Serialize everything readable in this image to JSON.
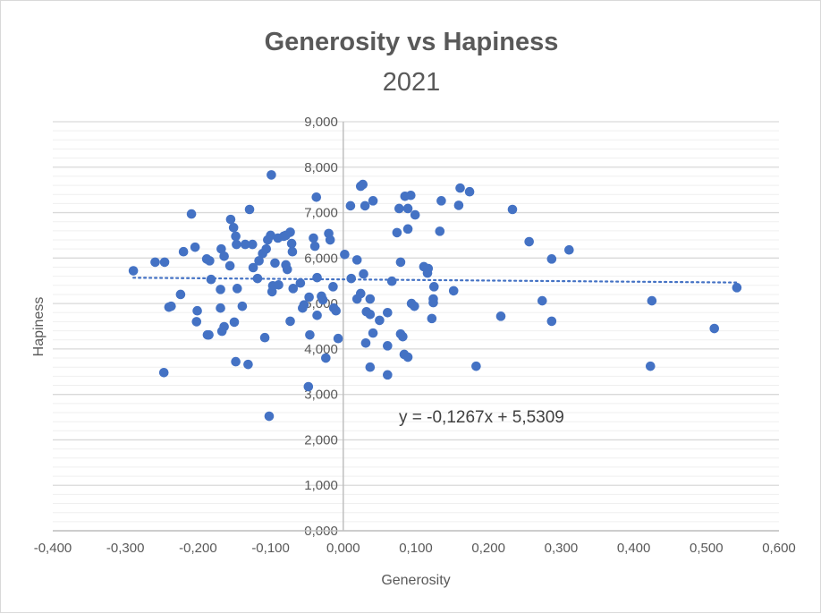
{
  "chart_data": {
    "type": "scatter",
    "title": "Generosity vs Hapiness",
    "subtitle": "2021",
    "xlabel": "Generosity",
    "ylabel": "Hapiness",
    "xlim": [
      -0.4,
      0.6
    ],
    "ylim": [
      0,
      9
    ],
    "x_ticks": [
      "-0,400",
      "-0,300",
      "-0,200",
      "-0,100",
      "0,000",
      "0,100",
      "0,200",
      "0,300",
      "0,400",
      "0,500",
      "0,600"
    ],
    "y_ticks": [
      "0,000",
      "1,000",
      "2,000",
      "3,000",
      "4,000",
      "5,000",
      "6,000",
      "7,000",
      "8,000",
      "9,000"
    ],
    "grid": true,
    "marker_color": "#4472c4",
    "trendline": {
      "type": "linear",
      "slope": -0.1267,
      "intercept": 5.5309,
      "style": "dotted",
      "label": "y = -0,1267x + 5,5309"
    },
    "points": [
      [
        -0.289,
        5.72
      ],
      [
        -0.259,
        5.91
      ],
      [
        -0.246,
        5.91
      ],
      [
        -0.247,
        3.48
      ],
      [
        -0.24,
        4.92
      ],
      [
        -0.237,
        4.94
      ],
      [
        -0.224,
        5.2
      ],
      [
        -0.22,
        6.14
      ],
      [
        -0.209,
        6.97
      ],
      [
        -0.204,
        6.24
      ],
      [
        -0.201,
        4.84
      ],
      [
        -0.202,
        4.6
      ],
      [
        -0.188,
        5.98
      ],
      [
        -0.184,
        5.94
      ],
      [
        -0.187,
        4.31
      ],
      [
        -0.185,
        4.31
      ],
      [
        -0.182,
        5.53
      ],
      [
        -0.169,
        5.31
      ],
      [
        -0.169,
        4.9
      ],
      [
        -0.168,
        6.2
      ],
      [
        -0.164,
        6.04
      ],
      [
        -0.167,
        4.39
      ],
      [
        -0.164,
        4.49
      ],
      [
        -0.156,
        5.83
      ],
      [
        -0.155,
        6.85
      ],
      [
        -0.151,
        6.67
      ],
      [
        -0.148,
        6.48
      ],
      [
        -0.147,
        6.3
      ],
      [
        -0.148,
        3.72
      ],
      [
        -0.146,
        5.33
      ],
      [
        -0.15,
        4.59
      ],
      [
        -0.139,
        4.94
      ],
      [
        -0.135,
        6.3
      ],
      [
        -0.131,
        3.66
      ],
      [
        -0.129,
        7.07
      ],
      [
        -0.125,
        6.3
      ],
      [
        -0.124,
        5.79
      ],
      [
        -0.118,
        5.55
      ],
      [
        -0.116,
        5.94
      ],
      [
        -0.111,
        6.1
      ],
      [
        -0.108,
        4.25
      ],
      [
        -0.106,
        6.2
      ],
      [
        -0.104,
        6.4
      ],
      [
        -0.1,
        6.5
      ],
      [
        -0.099,
        7.83
      ],
      [
        -0.102,
        2.52
      ],
      [
        -0.097,
        5.39
      ],
      [
        -0.098,
        5.26
      ],
      [
        -0.094,
        5.89
      ],
      [
        -0.09,
        6.44
      ],
      [
        -0.082,
        6.48
      ],
      [
        -0.079,
        6.5
      ],
      [
        -0.089,
        5.41
      ],
      [
        -0.079,
        5.85
      ],
      [
        -0.077,
        5.75
      ],
      [
        -0.073,
        6.57
      ],
      [
        -0.073,
        4.61
      ],
      [
        -0.071,
        6.32
      ],
      [
        -0.07,
        6.14
      ],
      [
        -0.069,
        5.33
      ],
      [
        -0.059,
        5.45
      ],
      [
        -0.056,
        4.9
      ],
      [
        -0.054,
        4.97
      ],
      [
        -0.046,
        4.31
      ],
      [
        -0.041,
        6.44
      ],
      [
        -0.039,
        6.26
      ],
      [
        -0.036,
        5.57
      ],
      [
        -0.036,
        4.74
      ],
      [
        -0.037,
        7.34
      ],
      [
        -0.03,
        5.16
      ],
      [
        -0.028,
        5.08
      ],
      [
        -0.024,
        3.8
      ],
      [
        -0.02,
        6.54
      ],
      [
        -0.018,
        6.4
      ],
      [
        -0.014,
        5.37
      ],
      [
        -0.013,
        4.9
      ],
      [
        -0.01,
        4.84
      ],
      [
        -0.007,
        4.23
      ],
      [
        -0.048,
        3.17
      ],
      [
        -0.047,
        5.14
      ],
      [
        0.002,
        6.08
      ],
      [
        0.024,
        7.58
      ],
      [
        0.027,
        7.62
      ],
      [
        0.01,
        7.15
      ],
      [
        0.03,
        7.15
      ],
      [
        0.041,
        7.26
      ],
      [
        0.019,
        5.96
      ],
      [
        0.028,
        5.65
      ],
      [
        0.011,
        5.55
      ],
      [
        0.024,
        5.22
      ],
      [
        0.019,
        5.1
      ],
      [
        0.037,
        5.1
      ],
      [
        0.032,
        4.82
      ],
      [
        0.037,
        4.76
      ],
      [
        0.05,
        4.63
      ],
      [
        0.061,
        4.8
      ],
      [
        0.041,
        4.35
      ],
      [
        0.031,
        4.13
      ],
      [
        0.061,
        4.07
      ],
      [
        0.037,
        3.6
      ],
      [
        0.061,
        3.43
      ],
      [
        0.067,
        5.49
      ],
      [
        0.079,
        5.91
      ],
      [
        0.074,
        6.56
      ],
      [
        0.089,
        6.64
      ],
      [
        0.077,
        7.09
      ],
      [
        0.089,
        7.09
      ],
      [
        0.099,
        6.95
      ],
      [
        0.085,
        7.36
      ],
      [
        0.093,
        7.38
      ],
      [
        0.079,
        4.33
      ],
      [
        0.082,
        4.27
      ],
      [
        0.084,
        3.88
      ],
      [
        0.089,
        3.82
      ],
      [
        0.094,
        5.0
      ],
      [
        0.098,
        4.94
      ],
      [
        0.111,
        5.81
      ],
      [
        0.117,
        5.77
      ],
      [
        0.116,
        5.67
      ],
      [
        0.125,
        5.37
      ],
      [
        0.124,
        5.1
      ],
      [
        0.124,
        5.02
      ],
      [
        0.122,
        4.67
      ],
      [
        0.133,
        6.59
      ],
      [
        0.135,
        7.26
      ],
      [
        0.152,
        5.28
      ],
      [
        0.159,
        7.16
      ],
      [
        0.161,
        7.54
      ],
      [
        0.174,
        7.46
      ],
      [
        0.183,
        3.62
      ],
      [
        0.217,
        4.72
      ],
      [
        0.233,
        7.07
      ],
      [
        0.256,
        6.36
      ],
      [
        0.274,
        5.06
      ],
      [
        0.287,
        5.98
      ],
      [
        0.287,
        4.61
      ],
      [
        0.311,
        6.18
      ],
      [
        0.425,
        5.06
      ],
      [
        0.423,
        3.62
      ],
      [
        0.511,
        4.45
      ],
      [
        0.542,
        5.35
      ]
    ]
  }
}
